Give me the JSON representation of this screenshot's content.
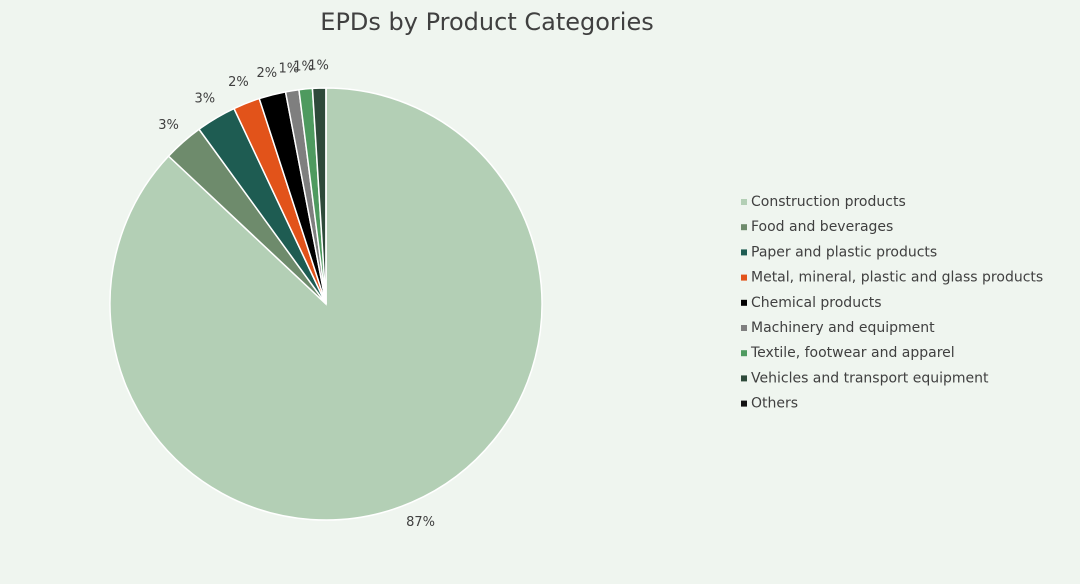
{
  "chart_data": {
    "type": "pie",
    "title": "EPDs by Product Categories",
    "categories": [
      "Construction products",
      "Food and beverages",
      "Paper and plastic products",
      "Metal, mineral, plastic and glass products",
      "Chemical products",
      "Machinery  and equipment",
      "Textile, footwear and apparel",
      "Vehicles and transport equipment",
      "Others"
    ],
    "values": [
      87,
      3,
      3,
      2,
      2,
      1,
      1,
      1,
      0
    ],
    "value_labels": [
      "87%",
      "3%",
      "3%",
      "2%",
      "2%",
      "1%",
      "1%",
      "1%",
      null
    ],
    "colors": [
      "#b3cfb5",
      "#6e8b6c",
      "#1e5c52",
      "#e2531a",
      "#000000",
      "#7f7f7f",
      "#4e9a5f",
      "#2e4a3a",
      "#111111"
    ],
    "legend": "right"
  }
}
